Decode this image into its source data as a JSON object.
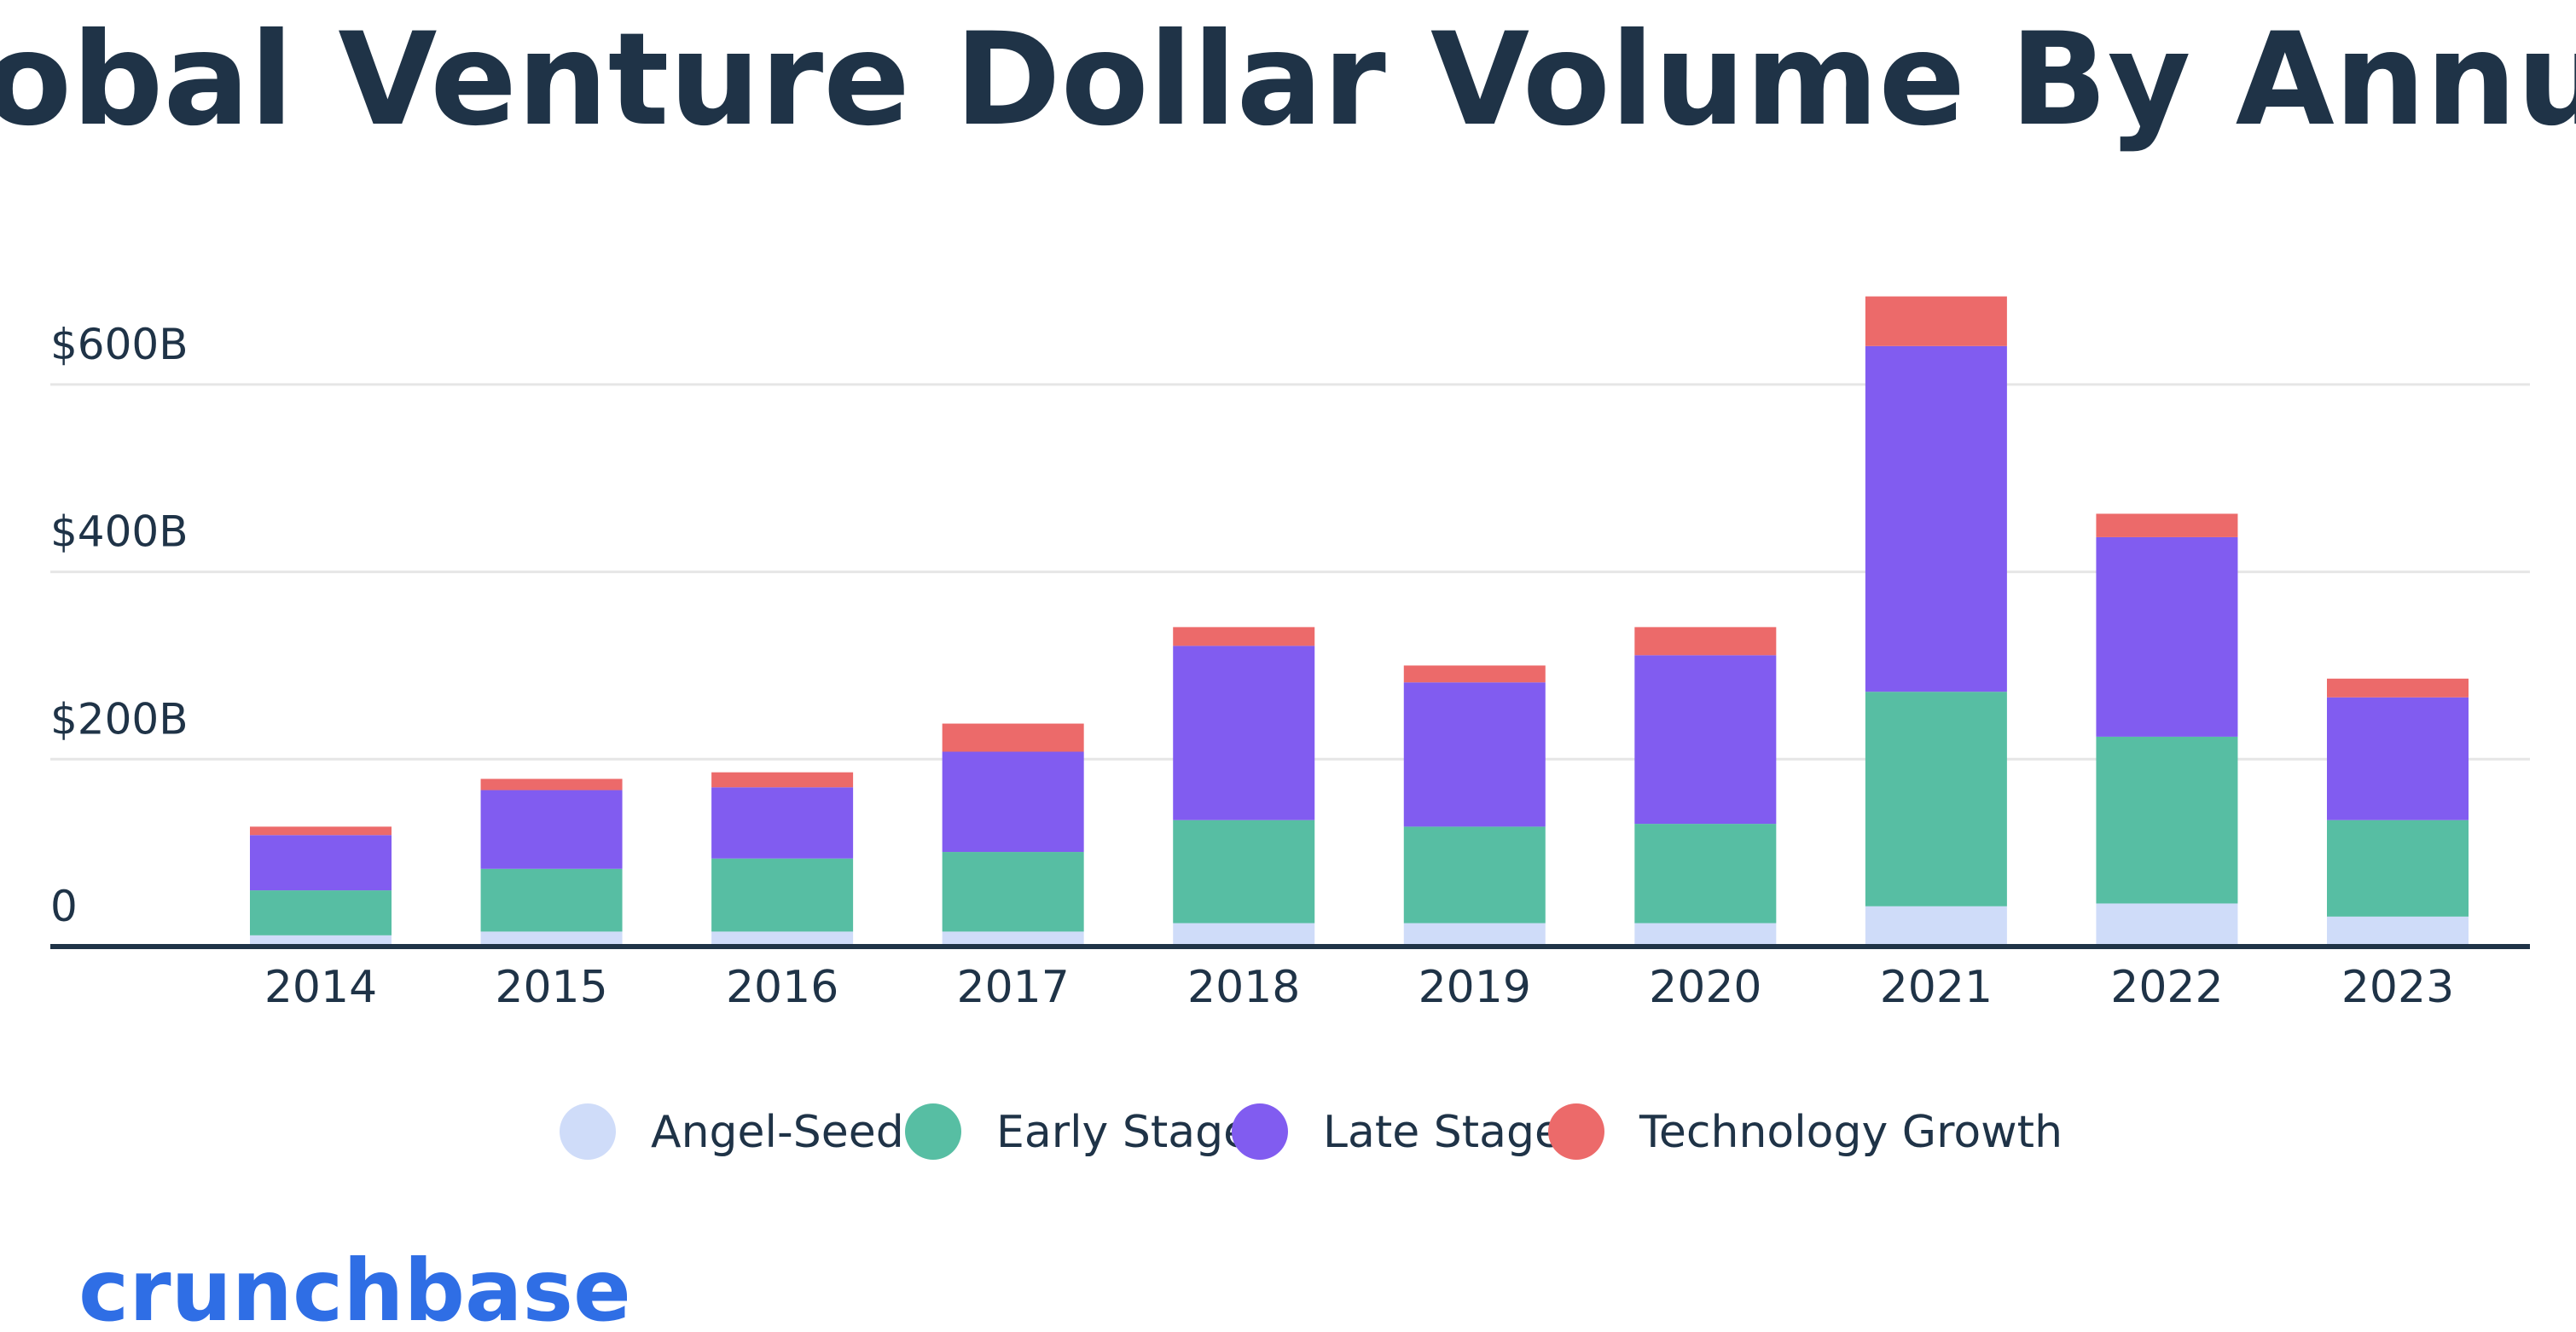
{
  "chart_data": {
    "type": "stacked_bar",
    "title": "Global Venture Dollar Volume By Annum",
    "categories": [
      "2014",
      "2015",
      "2016",
      "2017",
      "2018",
      "2019",
      "2020",
      "2021",
      "2022",
      "2023"
    ],
    "series": [
      {
        "name": "Angel-Seed",
        "color": "#cfdcf9",
        "values": [
          12,
          16,
          16,
          16,
          25,
          25,
          25,
          43,
          46,
          32
        ]
      },
      {
        "name": "Early Stage",
        "color": "#57bea3",
        "values": [
          48,
          67,
          78,
          85,
          110,
          103,
          106,
          229,
          178,
          103
        ]
      },
      {
        "name": "Late Stage",
        "color": "#815cf0",
        "values": [
          59,
          84,
          76,
          107,
          186,
          154,
          180,
          369,
          213,
          131
        ]
      },
      {
        "name": "Technology Growth",
        "color": "#ec6a6a",
        "values": [
          9,
          12,
          16,
          30,
          20,
          18,
          30,
          53,
          25,
          20
        ]
      }
    ],
    "ylim": [
      0,
      700
    ],
    "yticks": [
      0,
      {
        "value": 200,
        "label": "$200B"
      },
      {
        "value": 400,
        "label": "$400B"
      },
      {
        "value": 600,
        "label": "$600B"
      }
    ],
    "grid": true,
    "legend": "bottom",
    "brand": "crunchbase"
  }
}
